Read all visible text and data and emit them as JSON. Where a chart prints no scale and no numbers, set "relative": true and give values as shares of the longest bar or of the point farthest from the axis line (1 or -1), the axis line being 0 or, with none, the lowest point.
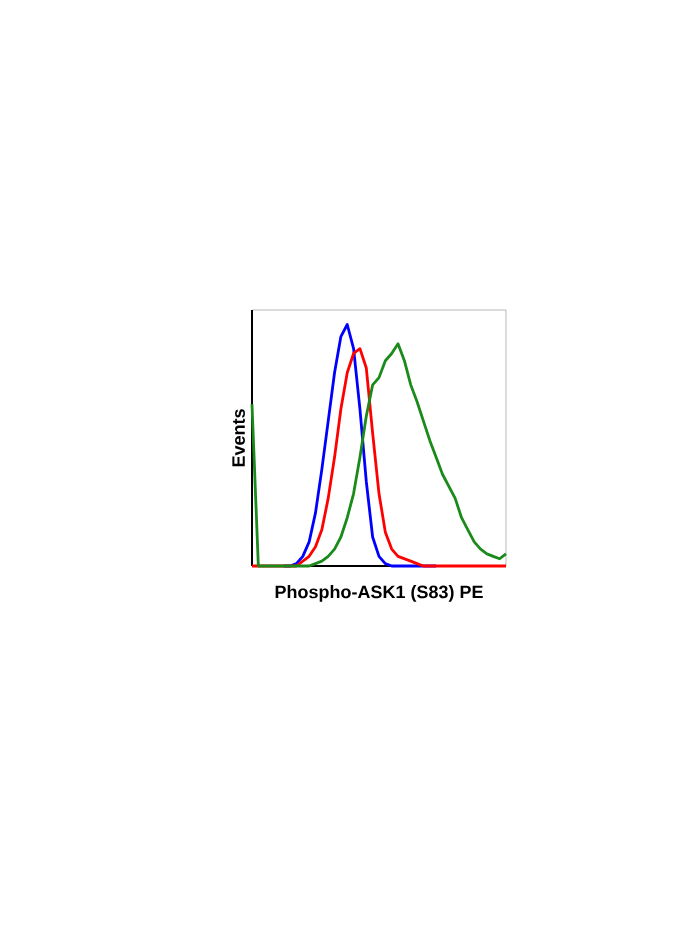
{
  "chart_data": {
    "type": "line",
    "relative": true,
    "xlabel": "Phospho-ASK1 (S83) PE",
    "ylabel": "Events",
    "marker": "none",
    "line_style": "solid",
    "categories": [
      null,
      null,
      null,
      null,
      null,
      null,
      null,
      null,
      null,
      null,
      null,
      null,
      null,
      null,
      null,
      null,
      null,
      null,
      null,
      null,
      null,
      null,
      null,
      null,
      null,
      null,
      null,
      null,
      null,
      null,
      null,
      null,
      null,
      null,
      null,
      null,
      null,
      null,
      null,
      null,
      null
    ],
    "series": [
      {
        "color": "#0000ff",
        "values": [
          null,
          null,
          null,
          null,
          null,
          0,
          0,
          0.01,
          0.04,
          0.1,
          0.22,
          0.4,
          0.6,
          0.8,
          0.95,
          1.0,
          0.9,
          0.65,
          0.35,
          0.12,
          0.04,
          0.01,
          0,
          0,
          0,
          0,
          0,
          0,
          0,
          0,
          null,
          null,
          null,
          null,
          null,
          null,
          null,
          null,
          null,
          null,
          null
        ]
      },
      {
        "color": "#ff0000",
        "values": [
          0,
          0,
          0,
          0,
          0,
          0,
          0,
          0,
          0.02,
          0.04,
          0.08,
          0.15,
          0.28,
          0.45,
          0.65,
          0.8,
          0.88,
          0.9,
          0.82,
          0.55,
          0.3,
          0.14,
          0.07,
          0.04,
          0.03,
          0.02,
          0.01,
          0,
          0,
          0,
          0,
          0,
          0,
          0,
          0,
          0,
          0,
          0,
          0,
          0,
          0
        ]
      },
      {
        "color": "#1a8a1a",
        "values": [
          0.67,
          0,
          0,
          0,
          0,
          0,
          0,
          0,
          0,
          0,
          0.01,
          0.02,
          0.04,
          0.07,
          0.12,
          0.2,
          0.3,
          0.45,
          0.62,
          0.75,
          0.78,
          0.85,
          0.88,
          0.92,
          0.85,
          0.75,
          0.68,
          0.6,
          0.52,
          0.45,
          0.38,
          0.33,
          0.28,
          0.2,
          0.15,
          0.1,
          0.07,
          0.05,
          0.04,
          0.03,
          0.05
        ]
      }
    ]
  }
}
